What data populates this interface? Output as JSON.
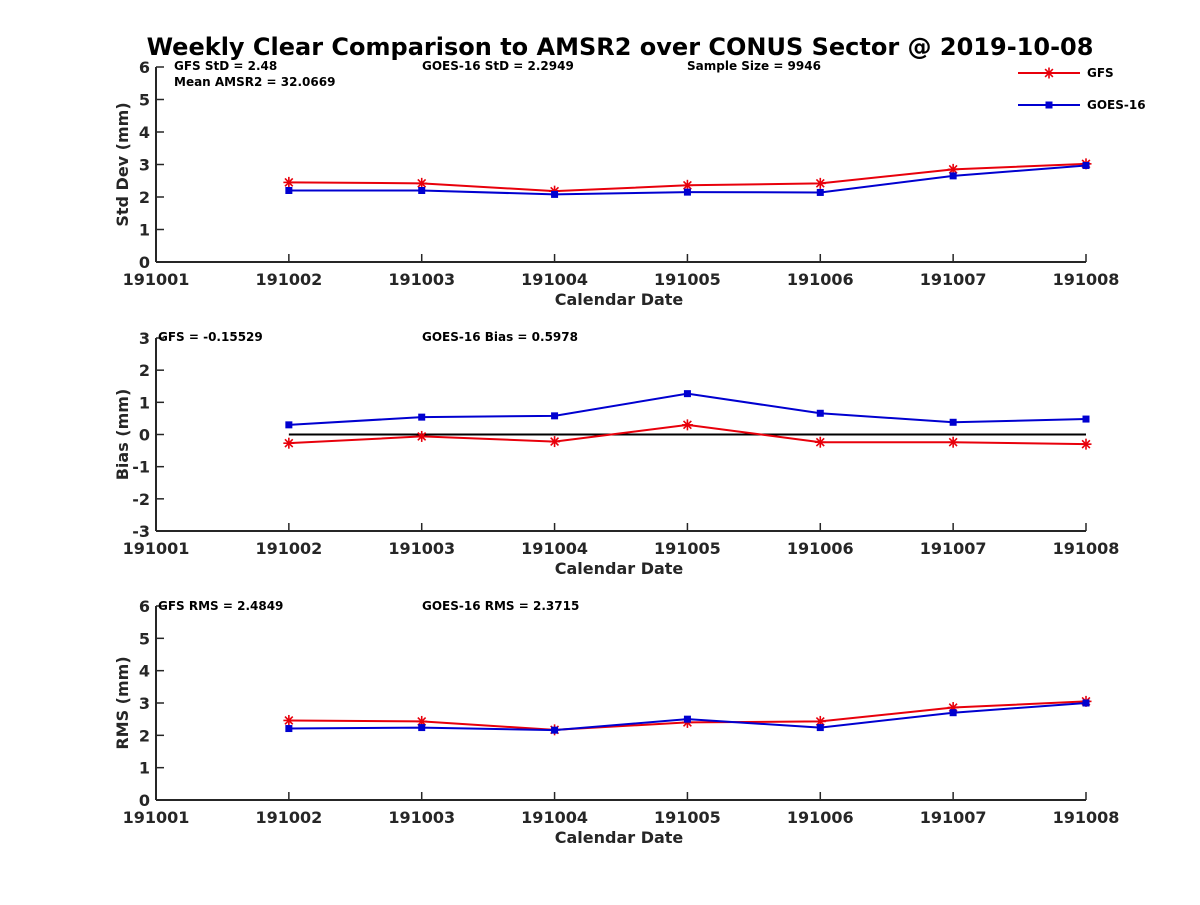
{
  "title": "Weekly Clear Comparison to AMSR2 over CONUS Sector @ 2019-10-08",
  "colors": {
    "gfs": "#e8000b",
    "goes": "#0000d0",
    "axis": "#262626",
    "zero_line": "#000000"
  },
  "legend": [
    {
      "label": "GFS",
      "marker": "asterisk",
      "color": "#e8000b"
    },
    {
      "label": "GOES-16",
      "marker": "square",
      "color": "#0000d0"
    }
  ],
  "chart_data": [
    {
      "type": "line",
      "xlabel": "Calendar Date",
      "ylabel": "Std Dev (mm)",
      "categories": [
        "191001",
        "191002",
        "191003",
        "191004",
        "191005",
        "191006",
        "191007",
        "191008"
      ],
      "ylim": [
        0,
        6
      ],
      "yticks": [
        0,
        1,
        2,
        3,
        4,
        5,
        6
      ],
      "annotations": [
        "GFS StD = 2.48",
        "Mean AMSR2 = 32.0669",
        "GOES-16 StD = 2.2949",
        "Sample Size = 9946"
      ],
      "series": [
        {
          "name": "GFS",
          "x": [
            "191002",
            "191003",
            "191004",
            "191005",
            "191006",
            "191007",
            "191008"
          ],
          "values": [
            2.45,
            2.42,
            2.18,
            2.36,
            2.42,
            2.85,
            3.02
          ]
        },
        {
          "name": "GOES-16",
          "x": [
            "191002",
            "191003",
            "191004",
            "191005",
            "191006",
            "191007",
            "191008"
          ],
          "values": [
            2.2,
            2.2,
            2.08,
            2.15,
            2.14,
            2.65,
            2.97
          ]
        }
      ]
    },
    {
      "type": "line",
      "xlabel": "Calendar Date",
      "ylabel": "Bias (mm)",
      "categories": [
        "191001",
        "191002",
        "191003",
        "191004",
        "191005",
        "191006",
        "191007",
        "191008"
      ],
      "ylim": [
        -3,
        3
      ],
      "yticks": [
        -3,
        -2,
        -1,
        0,
        1,
        2,
        3
      ],
      "reference_line": 0,
      "annotations": [
        "GFS = -0.15529",
        "GOES-16 Bias  = 0.5978"
      ],
      "series": [
        {
          "name": "GFS",
          "x": [
            "191002",
            "191003",
            "191004",
            "191005",
            "191006",
            "191007",
            "191008"
          ],
          "values": [
            -0.27,
            -0.06,
            -0.22,
            0.3,
            -0.24,
            -0.24,
            -0.3
          ]
        },
        {
          "name": "GOES-16",
          "x": [
            "191002",
            "191003",
            "191004",
            "191005",
            "191006",
            "191007",
            "191008"
          ],
          "values": [
            0.3,
            0.54,
            0.58,
            1.27,
            0.66,
            0.38,
            0.48
          ]
        }
      ]
    },
    {
      "type": "line",
      "xlabel": "Calendar Date",
      "ylabel": "RMS (mm)",
      "categories": [
        "191001",
        "191002",
        "191003",
        "191004",
        "191005",
        "191006",
        "191007",
        "191008"
      ],
      "ylim": [
        0,
        6
      ],
      "yticks": [
        0,
        1,
        2,
        3,
        4,
        5,
        6
      ],
      "annotations": [
        "GFS RMS = 2.4849",
        "GOES-16 RMS = 2.3715"
      ],
      "series": [
        {
          "name": "GFS",
          "x": [
            "191002",
            "191003",
            "191004",
            "191005",
            "191006",
            "191007",
            "191008"
          ],
          "values": [
            2.46,
            2.43,
            2.17,
            2.4,
            2.43,
            2.86,
            3.05
          ]
        },
        {
          "name": "GOES-16",
          "x": [
            "191002",
            "191003",
            "191004",
            "191005",
            "191006",
            "191007",
            "191008"
          ],
          "values": [
            2.21,
            2.24,
            2.16,
            2.5,
            2.24,
            2.7,
            3.0
          ]
        }
      ]
    }
  ]
}
